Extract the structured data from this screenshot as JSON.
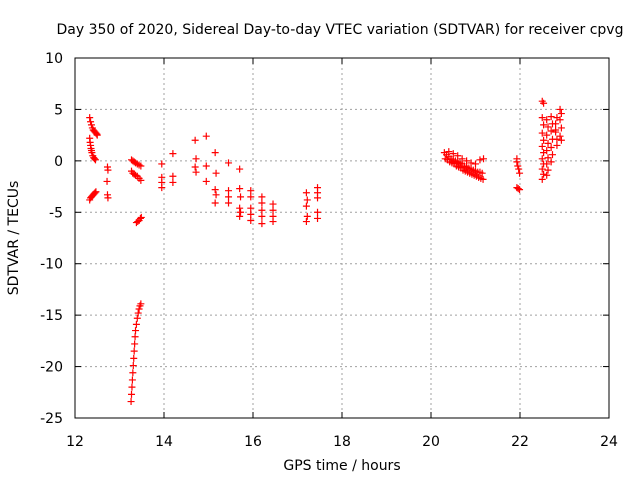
{
  "chart_data": {
    "type": "scatter",
    "title": "Day 350 of 2020, Sidereal Day-to-day VTEC variation (SDTVAR) for receiver cpvg",
    "xlabel": "GPS time / hours",
    "ylabel": "SDTVAR / TECUs",
    "xlim": [
      12,
      24
    ],
    "ylim": [
      -25,
      10
    ],
    "xticks": [
      12,
      14,
      16,
      18,
      20,
      22,
      24
    ],
    "yticks": [
      -25,
      -20,
      -15,
      -10,
      -5,
      0,
      5,
      10
    ],
    "grid": true,
    "marker": "+",
    "marker_color": "#ff0000",
    "series": [
      {
        "name": "SDTVAR",
        "points": [
          [
            12.33,
            4.2
          ],
          [
            12.35,
            3.8
          ],
          [
            12.37,
            3.5
          ],
          [
            12.39,
            3.2
          ],
          [
            12.41,
            3.0
          ],
          [
            12.43,
            2.9
          ],
          [
            12.45,
            2.8
          ],
          [
            12.47,
            2.7
          ],
          [
            12.49,
            2.6
          ],
          [
            12.5,
            2.5
          ],
          [
            12.33,
            2.2
          ],
          [
            12.34,
            1.8
          ],
          [
            12.35,
            1.5
          ],
          [
            12.36,
            1.2
          ],
          [
            12.37,
            1.0
          ],
          [
            12.38,
            0.8
          ],
          [
            12.4,
            0.5
          ],
          [
            12.42,
            0.3
          ],
          [
            12.44,
            0.2
          ],
          [
            12.46,
            0.1
          ],
          [
            12.33,
            -3.8
          ],
          [
            12.35,
            -3.6
          ],
          [
            12.37,
            -3.5
          ],
          [
            12.39,
            -3.4
          ],
          [
            12.41,
            -3.3
          ],
          [
            12.43,
            -3.2
          ],
          [
            12.45,
            -3.1
          ],
          [
            12.47,
            -3.0
          ],
          [
            12.73,
            -0.6
          ],
          [
            12.74,
            -0.9
          ],
          [
            12.72,
            -2.0
          ],
          [
            12.73,
            -3.3
          ],
          [
            12.74,
            -3.6
          ],
          [
            13.27,
            0.1
          ],
          [
            13.3,
            0.0
          ],
          [
            13.33,
            -0.1
          ],
          [
            13.36,
            -0.2
          ],
          [
            13.4,
            -0.3
          ],
          [
            13.44,
            -0.4
          ],
          [
            13.48,
            -0.5
          ],
          [
            13.27,
            -1.0
          ],
          [
            13.3,
            -1.2
          ],
          [
            13.33,
            -1.3
          ],
          [
            13.36,
            -1.4
          ],
          [
            13.4,
            -1.5
          ],
          [
            13.44,
            -1.7
          ],
          [
            13.48,
            -1.9
          ],
          [
            13.38,
            -6.0
          ],
          [
            13.41,
            -5.9
          ],
          [
            13.44,
            -5.8
          ],
          [
            13.47,
            -5.6
          ],
          [
            13.49,
            -5.5
          ],
          [
            13.26,
            -23.4
          ],
          [
            13.27,
            -22.7
          ],
          [
            13.28,
            -22.0
          ],
          [
            13.29,
            -21.3
          ],
          [
            13.3,
            -20.6
          ],
          [
            13.31,
            -19.9
          ],
          [
            13.32,
            -19.2
          ],
          [
            13.33,
            -18.5
          ],
          [
            13.34,
            -17.8
          ],
          [
            13.35,
            -17.1
          ],
          [
            13.36,
            -16.5
          ],
          [
            13.38,
            -15.9
          ],
          [
            13.4,
            -15.3
          ],
          [
            13.42,
            -14.8
          ],
          [
            13.44,
            -14.4
          ],
          [
            13.46,
            -14.1
          ],
          [
            13.48,
            -13.9
          ],
          [
            13.95,
            -0.3
          ],
          [
            13.95,
            -1.6
          ],
          [
            13.95,
            -2.1
          ],
          [
            13.95,
            -2.6
          ],
          [
            14.2,
            0.7
          ],
          [
            14.2,
            -1.5
          ],
          [
            14.2,
            -2.1
          ],
          [
            14.7,
            2.0
          ],
          [
            14.72,
            0.2
          ],
          [
            14.7,
            -0.6
          ],
          [
            14.72,
            -1.1
          ],
          [
            14.95,
            2.4
          ],
          [
            14.95,
            -0.5
          ],
          [
            14.95,
            -2.0
          ],
          [
            15.15,
            0.8
          ],
          [
            15.17,
            -1.2
          ],
          [
            15.15,
            -2.8
          ],
          [
            15.17,
            -3.3
          ],
          [
            15.15,
            -4.1
          ],
          [
            15.45,
            -0.2
          ],
          [
            15.45,
            -2.9
          ],
          [
            15.45,
            -3.5
          ],
          [
            15.45,
            -4.1
          ],
          [
            15.7,
            -0.8
          ],
          [
            15.7,
            -2.7
          ],
          [
            15.72,
            -3.5
          ],
          [
            15.7,
            -4.6
          ],
          [
            15.72,
            -5.0
          ],
          [
            15.7,
            -5.4
          ],
          [
            15.95,
            -2.9
          ],
          [
            15.95,
            -3.5
          ],
          [
            15.95,
            -4.6
          ],
          [
            15.95,
            -5.2
          ],
          [
            15.95,
            -5.8
          ],
          [
            16.2,
            -3.5
          ],
          [
            16.2,
            -4.1
          ],
          [
            16.2,
            -4.8
          ],
          [
            16.2,
            -5.4
          ],
          [
            16.2,
            -6.1
          ],
          [
            16.45,
            -4.2
          ],
          [
            16.45,
            -4.8
          ],
          [
            16.45,
            -5.4
          ],
          [
            16.45,
            -5.9
          ],
          [
            17.2,
            -3.1
          ],
          [
            17.22,
            -3.8
          ],
          [
            17.2,
            -4.4
          ],
          [
            17.22,
            -5.4
          ],
          [
            17.2,
            -5.9
          ],
          [
            17.45,
            -2.6
          ],
          [
            17.45,
            -3.1
          ],
          [
            17.45,
            -3.6
          ],
          [
            17.45,
            -5.0
          ],
          [
            17.45,
            -5.6
          ],
          [
            20.3,
            0.8
          ],
          [
            20.35,
            0.6
          ],
          [
            20.4,
            0.4
          ],
          [
            20.45,
            0.2
          ],
          [
            20.5,
            0.1
          ],
          [
            20.55,
            0.0
          ],
          [
            20.6,
            -0.1
          ],
          [
            20.65,
            -0.2
          ],
          [
            20.7,
            -0.3
          ],
          [
            20.75,
            -0.5
          ],
          [
            20.8,
            -0.6
          ],
          [
            20.85,
            -0.7
          ],
          [
            20.9,
            -0.8
          ],
          [
            20.95,
            -0.9
          ],
          [
            21.0,
            -1.0
          ],
          [
            21.05,
            -1.1
          ],
          [
            21.1,
            -1.1
          ],
          [
            21.15,
            -1.2
          ],
          [
            20.32,
            0.2
          ],
          [
            20.37,
            0.1
          ],
          [
            20.42,
            -0.1
          ],
          [
            20.47,
            -0.2
          ],
          [
            20.52,
            -0.3
          ],
          [
            20.57,
            -0.5
          ],
          [
            20.62,
            -0.6
          ],
          [
            20.67,
            -0.7
          ],
          [
            20.72,
            -0.9
          ],
          [
            20.77,
            -1.0
          ],
          [
            20.82,
            -1.1
          ],
          [
            20.87,
            -1.2
          ],
          [
            20.92,
            -1.3
          ],
          [
            20.97,
            -1.4
          ],
          [
            21.02,
            -1.5
          ],
          [
            21.07,
            -1.6
          ],
          [
            21.12,
            -1.7
          ],
          [
            21.17,
            -1.8
          ],
          [
            20.4,
            0.9
          ],
          [
            20.5,
            0.7
          ],
          [
            20.6,
            0.5
          ],
          [
            20.7,
            0.2
          ],
          [
            20.8,
            0.0
          ],
          [
            20.9,
            -0.2
          ],
          [
            21.0,
            -0.3
          ],
          [
            21.1,
            0.1
          ],
          [
            21.18,
            0.2
          ],
          [
            21.93,
            -0.1
          ],
          [
            21.95,
            -0.5
          ],
          [
            21.97,
            -0.8
          ],
          [
            21.99,
            -1.2
          ],
          [
            21.93,
            0.2
          ],
          [
            21.93,
            -2.6
          ],
          [
            21.96,
            -2.7
          ],
          [
            21.99,
            -2.8
          ],
          [
            22.5,
            5.8
          ],
          [
            22.53,
            5.6
          ],
          [
            22.5,
            4.2
          ],
          [
            22.53,
            3.5
          ],
          [
            22.5,
            2.7
          ],
          [
            22.53,
            2.0
          ],
          [
            22.5,
            1.4
          ],
          [
            22.53,
            0.8
          ],
          [
            22.5,
            0.2
          ],
          [
            22.53,
            -0.3
          ],
          [
            22.5,
            -0.8
          ],
          [
            22.53,
            -1.3
          ],
          [
            22.5,
            -1.8
          ],
          [
            22.6,
            4.0
          ],
          [
            22.63,
            3.3
          ],
          [
            22.6,
            2.5
          ],
          [
            22.63,
            1.7
          ],
          [
            22.6,
            1.0
          ],
          [
            22.63,
            0.3
          ],
          [
            22.6,
            -0.3
          ],
          [
            22.63,
            -0.9
          ],
          [
            22.6,
            -1.4
          ],
          [
            22.7,
            4.3
          ],
          [
            22.73,
            3.6
          ],
          [
            22.7,
            2.9
          ],
          [
            22.73,
            2.1
          ],
          [
            22.7,
            1.3
          ],
          [
            22.73,
            0.6
          ],
          [
            22.7,
            -0.1
          ],
          [
            22.8,
            3.6
          ],
          [
            22.83,
            4.2
          ],
          [
            22.8,
            2.8
          ],
          [
            22.83,
            2.1
          ],
          [
            22.8,
            3.0
          ],
          [
            22.83,
            1.5
          ],
          [
            22.9,
            5.0
          ],
          [
            22.93,
            4.6
          ],
          [
            22.9,
            4.0
          ],
          [
            22.93,
            3.2
          ],
          [
            22.9,
            2.4
          ],
          [
            22.93,
            2.0
          ]
        ]
      }
    ]
  }
}
